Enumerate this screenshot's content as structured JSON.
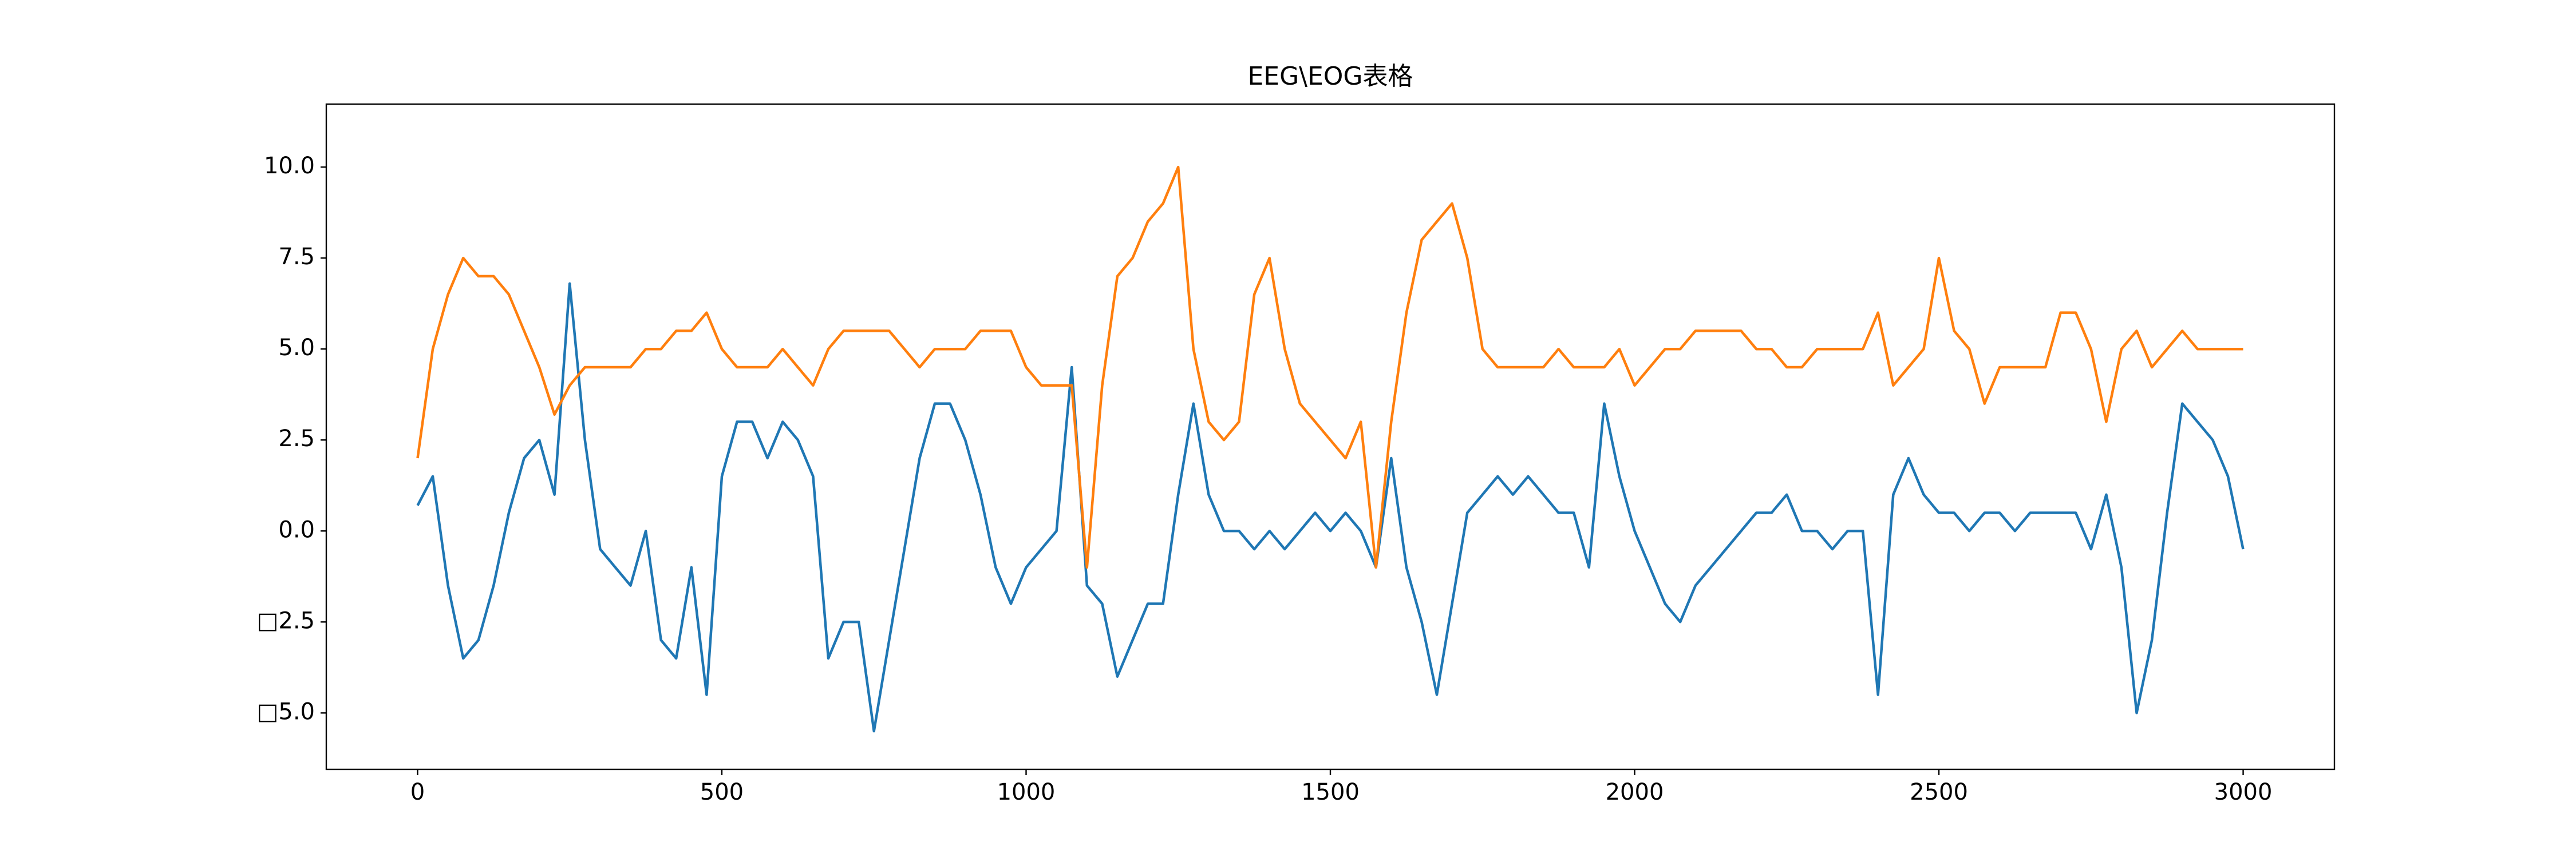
{
  "chart_data": {
    "type": "line",
    "title": "EEG\\EOG表格",
    "x": [
      0,
      25,
      50,
      75,
      100,
      125,
      150,
      175,
      200,
      225,
      250,
      275,
      300,
      325,
      350,
      375,
      400,
      425,
      450,
      475,
      500,
      525,
      550,
      575,
      600,
      625,
      650,
      675,
      700,
      725,
      750,
      775,
      800,
      825,
      850,
      875,
      900,
      925,
      950,
      975,
      1000,
      1025,
      1050,
      1075,
      1100,
      1125,
      1150,
      1175,
      1200,
      1225,
      1250,
      1275,
      1300,
      1325,
      1350,
      1375,
      1400,
      1425,
      1450,
      1475,
      1500,
      1525,
      1550,
      1575,
      1600,
      1625,
      1650,
      1675,
      1700,
      1725,
      1750,
      1775,
      1800,
      1825,
      1850,
      1875,
      1900,
      1925,
      1950,
      1975,
      2000,
      2025,
      2050,
      2075,
      2100,
      2125,
      2150,
      2175,
      2200,
      2225,
      2250,
      2275,
      2300,
      2325,
      2350,
      2375,
      2400,
      2425,
      2450,
      2475,
      2500,
      2525,
      2550,
      2575,
      2600,
      2625,
      2650,
      2675,
      2700,
      2725,
      2750,
      2775,
      2800,
      2825,
      2850,
      2875,
      2900,
      2925,
      2950,
      2975,
      3000
    ],
    "series": [
      {
        "color": "#1f77b4",
        "values": [
          0.7,
          1.5,
          -1.5,
          -3.5,
          -3.0,
          -1.5,
          0.5,
          2.0,
          2.5,
          1.0,
          6.8,
          2.5,
          -0.5,
          -1.0,
          -1.5,
          0.0,
          -3.0,
          -3.5,
          -1.0,
          -4.5,
          1.5,
          3.0,
          3.0,
          2.0,
          3.0,
          2.5,
          1.5,
          -3.5,
          -2.5,
          -2.5,
          -5.5,
          -3.0,
          -0.5,
          2.0,
          3.5,
          3.5,
          2.5,
          1.0,
          -1.0,
          -2.0,
          -1.0,
          -0.5,
          0.0,
          4.5,
          -1.5,
          -2.0,
          -4.0,
          -3.0,
          -2.0,
          -2.0,
          1.0,
          3.5,
          1.0,
          0.0,
          0.0,
          -0.5,
          0.0,
          -0.5,
          0.0,
          0.5,
          0.0,
          0.5,
          0.0,
          -1.0,
          2.0,
          -1.0,
          -2.5,
          -4.5,
          -2.0,
          0.5,
          1.0,
          1.5,
          1.0,
          1.5,
          1.0,
          0.5,
          0.5,
          -1.0,
          3.5,
          1.5,
          0.0,
          -1.0,
          -2.0,
          -2.5,
          -1.5,
          -1.0,
          -0.5,
          0.0,
          0.5,
          0.5,
          1.0,
          0.0,
          0.0,
          -0.5,
          0.0,
          0.0,
          -4.5,
          1.0,
          2.0,
          1.0,
          0.5,
          0.5,
          0.0,
          0.5,
          0.5,
          0.0,
          0.5,
          0.5,
          0.5,
          0.5,
          -0.5,
          1.0,
          -1.0,
          -5.0,
          -3.0,
          0.5,
          3.5,
          3.0,
          2.5,
          1.5,
          -0.5
        ]
      },
      {
        "color": "#ff7f0e",
        "values": [
          2.0,
          5.0,
          6.5,
          7.5,
          7.0,
          7.0,
          6.5,
          5.5,
          4.5,
          3.2,
          4.0,
          4.5,
          4.5,
          4.5,
          4.5,
          5.0,
          5.0,
          5.5,
          5.5,
          6.0,
          5.0,
          4.5,
          4.5,
          4.5,
          5.0,
          4.5,
          4.0,
          5.0,
          5.5,
          5.5,
          5.5,
          5.5,
          5.0,
          4.5,
          5.0,
          5.0,
          5.0,
          5.5,
          5.5,
          5.5,
          4.5,
          4.0,
          4.0,
          4.0,
          -1.0,
          4.0,
          7.0,
          7.5,
          8.5,
          9.0,
          10.0,
          5.0,
          3.0,
          2.5,
          3.0,
          6.5,
          7.5,
          5.0,
          3.5,
          3.0,
          2.5,
          2.0,
          3.0,
          -1.0,
          3.0,
          6.0,
          8.0,
          8.5,
          9.0,
          7.5,
          5.0,
          4.5,
          4.5,
          4.5,
          4.5,
          5.0,
          4.5,
          4.5,
          4.5,
          5.0,
          4.0,
          4.5,
          5.0,
          5.0,
          5.5,
          5.5,
          5.5,
          5.5,
          5.0,
          5.0,
          4.5,
          4.5,
          5.0,
          5.0,
          5.0,
          5.0,
          6.0,
          4.0,
          4.5,
          5.0,
          7.5,
          5.5,
          5.0,
          3.5,
          4.5,
          4.5,
          4.5,
          4.5,
          6.0,
          6.0,
          5.0,
          3.0,
          5.0,
          5.5,
          4.5,
          5.0,
          5.5,
          5.0,
          5.0,
          5.0,
          5.0
        ]
      }
    ],
    "xlim": [
      -150,
      3150
    ],
    "ylim": [
      -6.55,
      11.73
    ],
    "xticks": [
      0,
      500,
      1000,
      1500,
      2000,
      2500,
      3000
    ],
    "yticks": [
      {
        "value": -5,
        "label": "□5.0"
      },
      {
        "value": -2.5,
        "label": "□2.5"
      },
      {
        "value": 0,
        "label": "0.0"
      },
      2.5,
      {
        "value": 5,
        "label": "5.0"
      },
      7.5,
      {
        "value": 10,
        "label": "10.0"
      }
    ]
  }
}
